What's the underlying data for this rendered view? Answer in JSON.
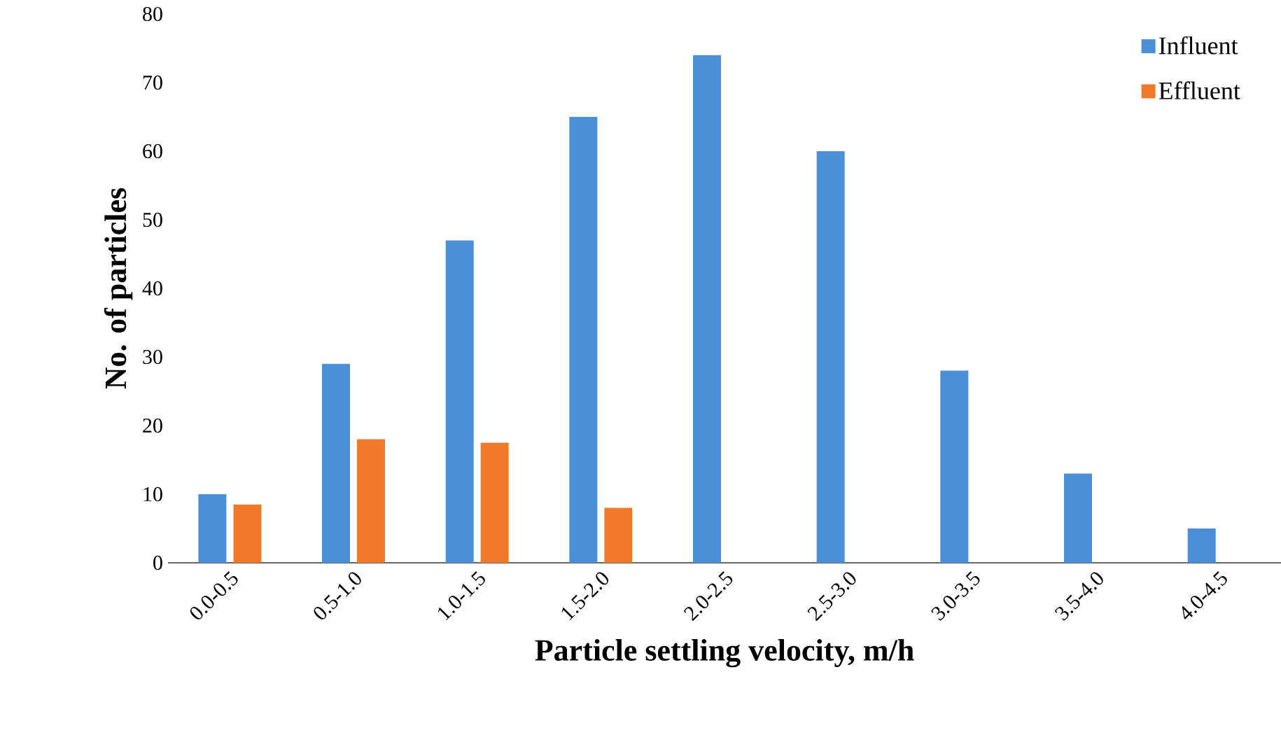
{
  "chart_data": {
    "type": "bar",
    "xlabel": "Particle settling velocity, m/h",
    "ylabel": "No. of particles",
    "categories": [
      "0.0-0.5",
      "0.5-1.0",
      "1.0-1.5",
      "1.5-2.0",
      "2.0-2.5",
      "2.5-3.0",
      "3.0-3.5",
      "3.5-4.0",
      "4.0-4.5"
    ],
    "series": [
      {
        "name": "Influent",
        "color": "#4a8fd8",
        "values": [
          10,
          29,
          47,
          65,
          74,
          60,
          28,
          13,
          5
        ]
      },
      {
        "name": "Effluent",
        "color": "#f07a2a",
        "values": [
          8.5,
          18,
          17.5,
          8,
          null,
          null,
          null,
          null,
          null
        ]
      }
    ],
    "ylim": [
      0,
      80
    ],
    "yticks": [
      0,
      10,
      20,
      30,
      40,
      50,
      60,
      70,
      80
    ],
    "grid": false,
    "legend": "top right"
  }
}
